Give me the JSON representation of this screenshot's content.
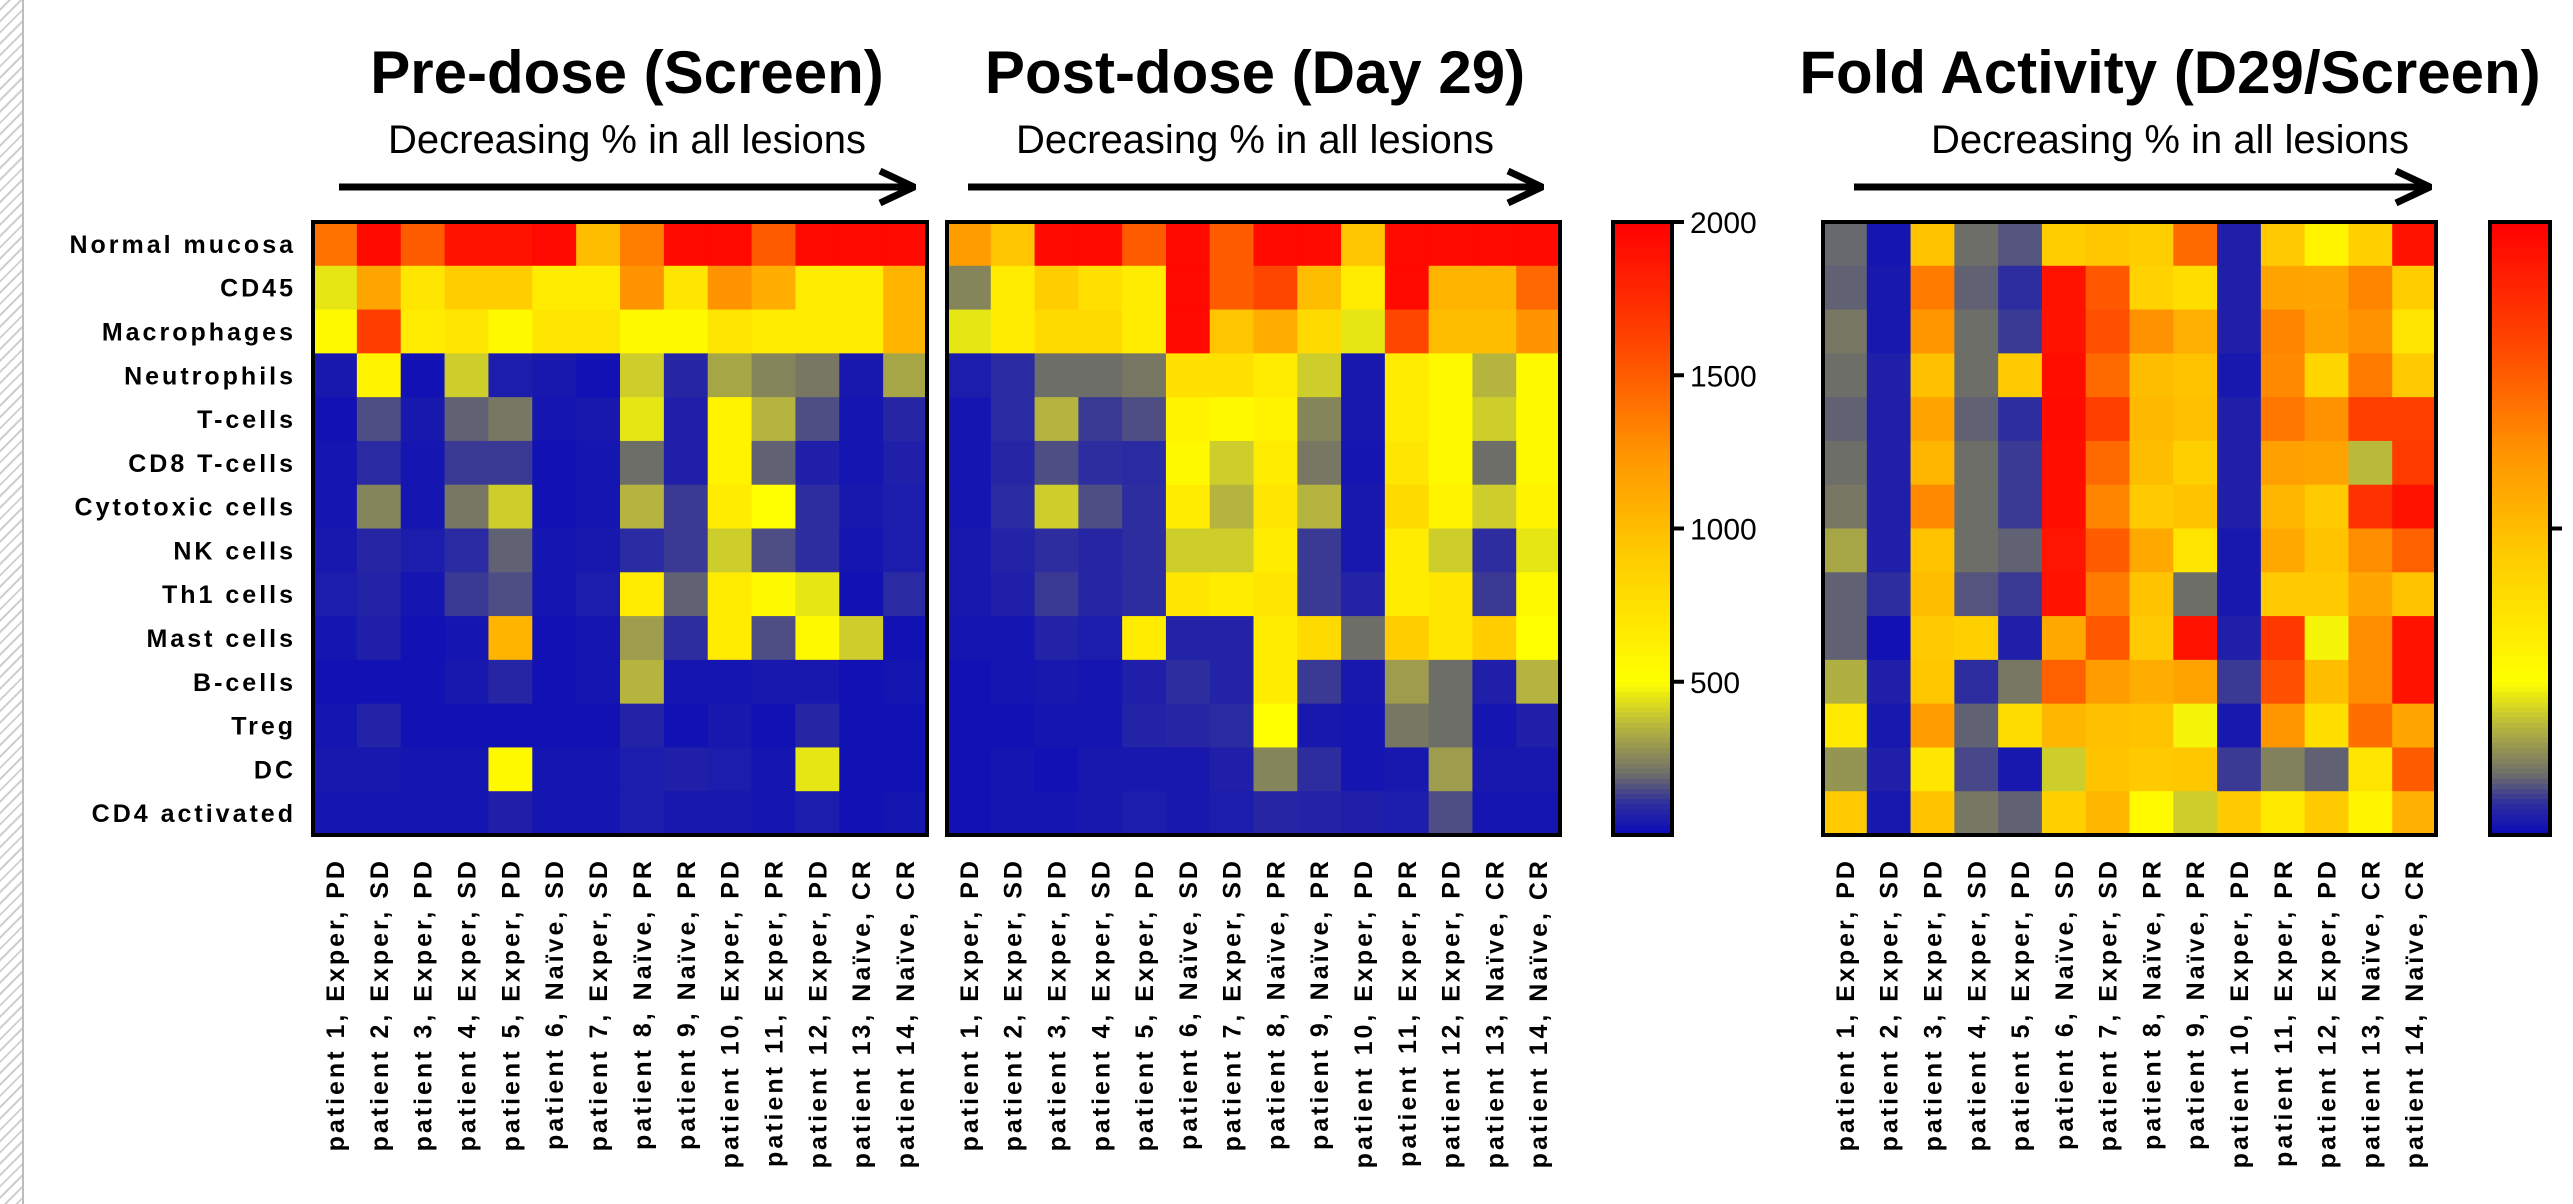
{
  "chart_data": [
    {
      "type": "heatmap",
      "title": "Pre-dose (Screen)",
      "subtitle": "Decreasing % in all lesions",
      "rows": [
        "Normal mucosa",
        "CD45",
        "Macrophages",
        "Neutrophils",
        "T-cells",
        "CD8 T-cells",
        "Cytotoxic cells",
        "NK cells",
        "Th1 cells",
        "Mast cells",
        "B-cells",
        "Treg",
        "DC",
        "CD4 activated"
      ],
      "columns": [
        "patient 1, Exper, PD",
        "patient 2, Exper, SD",
        "patient 3, Exper, PD",
        "patient 4, Exper, SD",
        "patient 5, Exper, PD",
        "patient 6, Naïve, SD",
        "patient 7, Exper, SD",
        "patient 8, Naïve, PR",
        "patient 9, Naïve, PR",
        "patient 10, Exper, PD",
        "patient 11, Exper, PR",
        "patient 12, Exper, PD",
        "patient 13, Naïve, CR",
        "patient 14, Naïve, CR"
      ],
      "values": [
        [
          1400,
          1950,
          1500,
          1900,
          1900,
          1950,
          1000,
          1350,
          1950,
          1950,
          1500,
          1950,
          1950,
          1950
        ],
        [
          450,
          1150,
          700,
          900,
          900,
          650,
          650,
          1250,
          700,
          1250,
          1100,
          650,
          650,
          1050
        ],
        [
          550,
          1650,
          650,
          700,
          550,
          700,
          700,
          550,
          550,
          700,
          650,
          650,
          650,
          1050
        ],
        [
          40,
          600,
          20,
          400,
          50,
          40,
          20,
          400,
          80,
          320,
          250,
          220,
          40,
          320
        ],
        [
          20,
          150,
          40,
          180,
          220,
          30,
          40,
          450,
          60,
          600,
          350,
          150,
          30,
          80
        ],
        [
          30,
          90,
          30,
          120,
          120,
          20,
          30,
          200,
          60,
          600,
          180,
          60,
          30,
          60
        ],
        [
          30,
          250,
          30,
          220,
          400,
          20,
          30,
          350,
          120,
          650,
          500,
          100,
          40,
          50
        ],
        [
          40,
          80,
          50,
          90,
          180,
          30,
          40,
          90,
          120,
          400,
          150,
          100,
          30,
          50
        ],
        [
          50,
          70,
          30,
          120,
          150,
          30,
          50,
          650,
          180,
          650,
          550,
          450,
          20,
          90
        ],
        [
          30,
          60,
          20,
          30,
          1050,
          20,
          30,
          300,
          100,
          650,
          150,
          550,
          400,
          20
        ],
        [
          20,
          20,
          20,
          40,
          80,
          20,
          30,
          350,
          30,
          30,
          40,
          40,
          20,
          30
        ],
        [
          30,
          70,
          20,
          20,
          20,
          20,
          20,
          70,
          20,
          40,
          20,
          80,
          20,
          20
        ],
        [
          40,
          40,
          30,
          30,
          550,
          30,
          30,
          50,
          60,
          50,
          30,
          450,
          20,
          20
        ],
        [
          30,
          30,
          30,
          30,
          60,
          30,
          30,
          50,
          40,
          40,
          30,
          50,
          20,
          30
        ]
      ],
      "colorbar": {
        "ticks": [
          500,
          1000,
          1500,
          2000
        ],
        "range": [
          0,
          2000
        ]
      }
    },
    {
      "type": "heatmap",
      "title": "Post-dose (Day 29)",
      "subtitle": "Decreasing % in all lesions",
      "rows": [
        "Normal mucosa",
        "CD45",
        "Macrophages",
        "Neutrophils",
        "T-cells",
        "CD8 T-cells",
        "Cytotoxic cells",
        "NK cells",
        "Th1 cells",
        "Mast cells",
        "B-cells",
        "Treg",
        "DC",
        "CD4 activated"
      ],
      "columns": [
        "patient 1, Exper, PD",
        "patient 2, Exper, SD",
        "patient 3, Exper, PD",
        "patient 4, Exper, SD",
        "patient 5, Exper, PD",
        "patient 6, Naïve, SD",
        "patient 7, Exper, SD",
        "patient 8, Naïve, PR",
        "patient 9, Naïve, PR",
        "patient 10, Exper, PD",
        "patient 11, Exper, PR",
        "patient 12, Exper, PD",
        "patient 13, Naïve, CR",
        "patient 14, Naïve, CR"
      ],
      "values": [
        [
          1200,
          950,
          1950,
          1950,
          1500,
          1950,
          1500,
          1950,
          1950,
          950,
          1950,
          1950,
          1950,
          1950
        ],
        [
          250,
          650,
          900,
          750,
          650,
          1950,
          1500,
          1600,
          1000,
          650,
          1950,
          1050,
          1050,
          1450
        ],
        [
          450,
          650,
          800,
          800,
          650,
          1950,
          950,
          1100,
          800,
          450,
          1600,
          1000,
          1000,
          1250
        ],
        [
          50,
          90,
          200,
          200,
          220,
          750,
          750,
          650,
          400,
          40,
          650,
          550,
          350,
          550
        ],
        [
          30,
          90,
          350,
          120,
          150,
          600,
          550,
          600,
          250,
          40,
          650,
          550,
          400,
          550
        ],
        [
          30,
          80,
          150,
          100,
          90,
          550,
          400,
          650,
          220,
          30,
          700,
          550,
          200,
          550
        ],
        [
          30,
          90,
          400,
          150,
          100,
          650,
          350,
          700,
          350,
          40,
          800,
          600,
          400,
          600
        ],
        [
          40,
          70,
          100,
          80,
          100,
          400,
          400,
          650,
          120,
          40,
          650,
          400,
          100,
          450
        ],
        [
          40,
          60,
          120,
          80,
          100,
          700,
          650,
          700,
          120,
          70,
          650,
          700,
          120,
          550
        ],
        [
          30,
          30,
          70,
          50,
          650,
          70,
          70,
          650,
          800,
          200,
          900,
          700,
          900,
          500
        ],
        [
          20,
          30,
          40,
          30,
          60,
          100,
          70,
          650,
          120,
          40,
          300,
          200,
          60,
          350
        ],
        [
          20,
          20,
          30,
          30,
          70,
          80,
          90,
          500,
          40,
          30,
          220,
          200,
          30,
          60
        ],
        [
          20,
          30,
          20,
          40,
          40,
          40,
          60,
          250,
          100,
          30,
          40,
          300,
          40,
          40
        ],
        [
          20,
          30,
          30,
          40,
          50,
          40,
          50,
          80,
          70,
          60,
          50,
          150,
          30,
          30
        ]
      ],
      "colorbar": {
        "ticks": [
          500,
          1000,
          1500,
          2000
        ],
        "range": [
          0,
          2000
        ]
      }
    },
    {
      "type": "heatmap",
      "title": "Fold Activity (D29/Screen)",
      "subtitle": "Decreasing % in all lesions",
      "rows": [
        "Normal mucosa",
        "CD45",
        "Macrophages",
        "Neutrophils",
        "T-cells",
        "CD8 T-cells",
        "Cytotoxic cells",
        "NK cells",
        "Th1 cells",
        "Mast cells",
        "B-cells",
        "Treg",
        "DC",
        "CD4 activated"
      ],
      "columns": [
        "patient 1, Exper, PD",
        "patient 2, Exper, SD",
        "patient 3, Exper, PD",
        "patient 4, Exper, SD",
        "patient 5, Exper, PD",
        "patient 6, Naïve, SD",
        "patient 7, Exper, SD",
        "patient 8, Naïve, PR",
        "patient 9, Naïve, PR",
        "patient 10, Exper, PD",
        "patient 11, Exper, PR",
        "patient 12, Exper, PD",
        "patient 13, Naïve, CR",
        "patient 14, Naïve, CR"
      ],
      "values": [
        [
          0.95,
          0.15,
          4.8,
          1.0,
          0.8,
          4.5,
          4.7,
          4.5,
          7.2,
          0.3,
          4.6,
          2.9,
          4.4,
          9.5
        ],
        [
          0.9,
          0.2,
          6.8,
          0.9,
          0.5,
          9.5,
          7.6,
          4.3,
          3.8,
          0.3,
          5.8,
          5.7,
          6.6,
          4.5
        ],
        [
          1.1,
          0.2,
          6.2,
          1.0,
          0.6,
          9.5,
          7.8,
          6.3,
          5.4,
          0.3,
          6.6,
          5.8,
          6.3,
          3.5
        ],
        [
          1.0,
          0.3,
          4.9,
          1.0,
          4.6,
          9.6,
          7.2,
          5.0,
          4.8,
          0.2,
          6.5,
          4.2,
          6.8,
          4.6
        ],
        [
          0.9,
          0.3,
          5.8,
          0.9,
          0.5,
          9.7,
          8.2,
          5.1,
          4.9,
          0.3,
          6.9,
          6.3,
          8.2,
          8.2
        ],
        [
          1.0,
          0.3,
          5.2,
          1.0,
          0.6,
          9.6,
          7.2,
          5.0,
          4.4,
          0.3,
          5.9,
          5.8,
          1.8,
          8.3
        ],
        [
          1.1,
          0.3,
          6.5,
          1.0,
          0.6,
          9.6,
          6.6,
          4.6,
          4.8,
          0.3,
          5.2,
          4.6,
          8.6,
          9.5
        ],
        [
          1.6,
          0.3,
          4.8,
          1.0,
          0.9,
          9.4,
          7.5,
          5.6,
          3.6,
          0.2,
          5.6,
          4.8,
          6.4,
          7.4
        ],
        [
          0.9,
          0.5,
          5.0,
          0.8,
          0.6,
          9.5,
          6.8,
          4.8,
          1.0,
          0.2,
          4.6,
          4.6,
          5.7,
          4.8
        ],
        [
          0.9,
          0.1,
          4.6,
          4.4,
          0.3,
          5.6,
          7.6,
          4.6,
          9.5,
          0.3,
          8.4,
          2.4,
          6.4,
          9.5
        ],
        [
          1.7,
          0.3,
          4.7,
          0.5,
          1.1,
          7.4,
          6.0,
          5.5,
          5.8,
          0.6,
          7.8,
          5.0,
          6.4,
          9.5
        ],
        [
          3.4,
          0.2,
          6.0,
          0.9,
          3.9,
          5.2,
          4.9,
          4.8,
          2.4,
          0.2,
          6.2,
          3.8,
          7.1,
          5.7
        ],
        [
          1.4,
          0.3,
          3.5,
          0.7,
          0.2,
          2.0,
          4.8,
          4.6,
          4.7,
          0.6,
          1.2,
          0.9,
          3.6,
          7.5
        ],
        [
          4.6,
          0.2,
          4.8,
          1.1,
          0.9,
          4.4,
          5.2,
          2.7,
          2.0,
          4.6,
          3.4,
          4.6,
          2.9,
          5.4
        ]
      ],
      "colorbar": {
        "ticks": [
          5
        ],
        "range": [
          0,
          10
        ]
      }
    }
  ]
}
